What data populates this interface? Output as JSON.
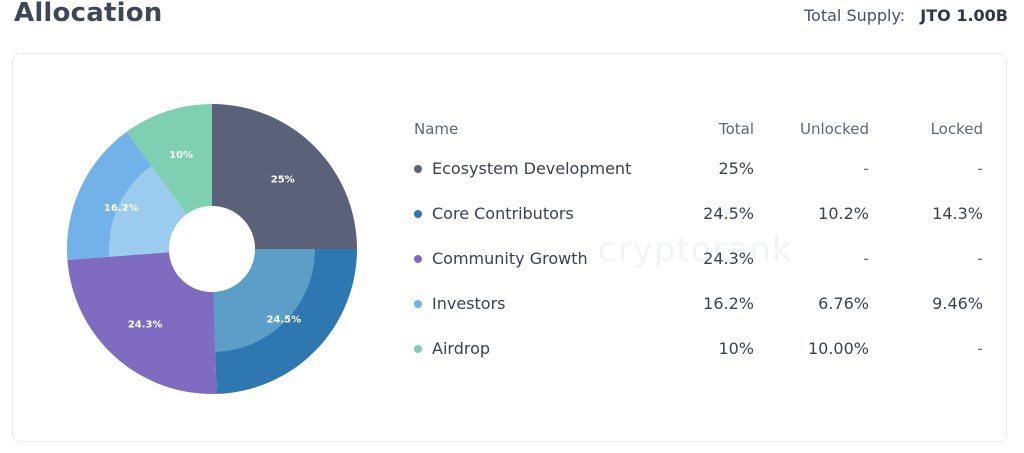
{
  "header": {
    "title": "Allocation",
    "total_supply_label": "Total Supply:",
    "total_supply_value": "JTO 1.00B"
  },
  "watermark": "cryptorank",
  "table": {
    "headers": {
      "name": "Name",
      "total": "Total",
      "unlocked": "Unlocked",
      "locked": "Locked"
    },
    "rows": [
      {
        "name": "Ecosystem Development",
        "total": "25%",
        "unlocked": "-",
        "locked": "-",
        "color": "#5b6178"
      },
      {
        "name": "Core Contributors",
        "total": "24.5%",
        "unlocked": "10.2%",
        "locked": "14.3%",
        "color": "#2f77b0"
      },
      {
        "name": "Community Growth",
        "total": "24.3%",
        "unlocked": "-",
        "locked": "-",
        "color": "#7f6bbf"
      },
      {
        "name": "Investors",
        "total": "16.2%",
        "unlocked": "6.76%",
        "locked": "9.46%",
        "color": "#72b2e8"
      },
      {
        "name": "Airdrop",
        "total": "10%",
        "unlocked": "10.00%",
        "locked": "-",
        "color": "#7fcfb2"
      }
    ]
  },
  "chart_data": {
    "type": "pie",
    "variant": "donut",
    "categories": [
      "Ecosystem Development",
      "Core Contributors",
      "Community Growth",
      "Investors",
      "Airdrop"
    ],
    "values": [
      25,
      24.5,
      24.3,
      16.2,
      10
    ],
    "unlocked_share": [
      null,
      10.2,
      null,
      6.76,
      10.0
    ],
    "data_labels": [
      "25%",
      "24.5%",
      "24.3%",
      "16.2%",
      "10%"
    ],
    "colors": [
      "#5b6178",
      "#2f77b0",
      "#7f6bbf",
      "#72b2e8",
      "#7fcfb2"
    ],
    "unlocked_colors": [
      null,
      "#5c9ec8",
      null,
      "#9ccbf0",
      "#7fcfb2"
    ],
    "start_angle_deg": 0,
    "direction": "clockwise",
    "legend": "table-right"
  }
}
